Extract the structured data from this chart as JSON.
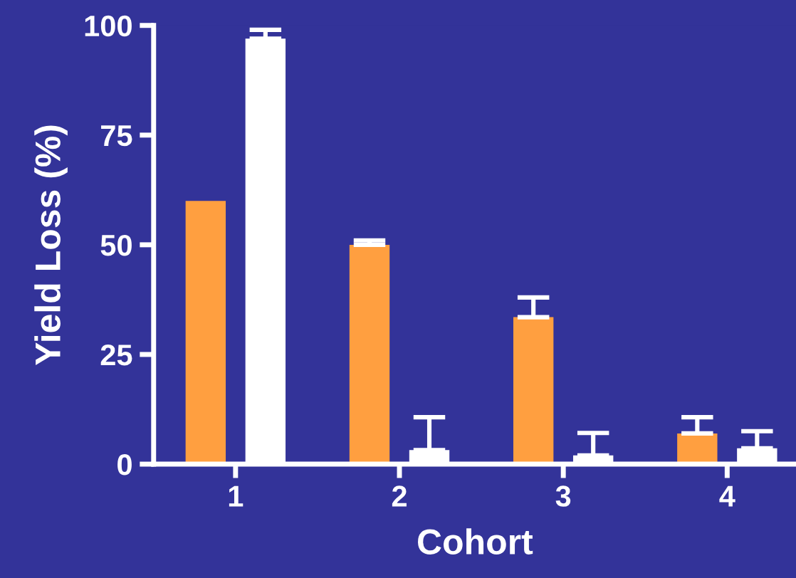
{
  "chart_data": {
    "type": "bar",
    "xlabel": "Cohort",
    "ylabel": "Yield Loss (%)",
    "categories": [
      "1",
      "2",
      "3",
      "4"
    ],
    "series": [
      {
        "color": "#ff9f40",
        "values": [
          60,
          50,
          33.5,
          7
        ],
        "errors": [
          null,
          [
            50,
            51
          ],
          [
            33.5,
            38
          ],
          [
            7,
            10.7
          ]
        ]
      },
      {
        "color": "#ffffff",
        "values": [
          97,
          3.2,
          2,
          3.6
        ],
        "errors": [
          [
            97,
            99
          ],
          [
            3.2,
            10.7
          ],
          [
            2,
            7.1
          ],
          [
            3.6,
            7.5
          ]
        ]
      }
    ],
    "ylim": [
      0,
      100
    ],
    "yticks": [
      0,
      25,
      50,
      75,
      100
    ],
    "grid": false,
    "legend": false
  }
}
